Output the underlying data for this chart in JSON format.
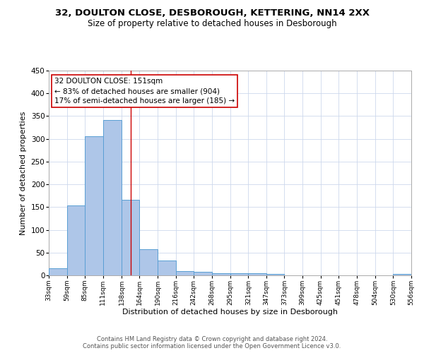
{
  "title1": "32, DOULTON CLOSE, DESBOROUGH, KETTERING, NN14 2XX",
  "title2": "Size of property relative to detached houses in Desborough",
  "xlabel": "Distribution of detached houses by size in Desborough",
  "ylabel": "Number of detached properties",
  "bar_edges": [
    33,
    59,
    85,
    111,
    138,
    164,
    190,
    216,
    242,
    268,
    295,
    321,
    347,
    373,
    399,
    425,
    451,
    478,
    504,
    530,
    556
  ],
  "bar_heights": [
    15,
    153,
    305,
    341,
    166,
    57,
    33,
    9,
    7,
    5,
    4,
    4,
    3,
    0,
    0,
    0,
    0,
    0,
    0,
    3
  ],
  "bar_color": "#aec6e8",
  "bar_edge_color": "#5a9fd4",
  "property_size": 151,
  "vline_color": "#cc0000",
  "annotation_line1": "32 DOULTON CLOSE: 151sqm",
  "annotation_line2": "← 83% of detached houses are smaller (904)",
  "annotation_line3": "17% of semi-detached houses are larger (185) →",
  "annotation_box_color": "#ffffff",
  "annotation_box_edge": "#cc0000",
  "grid_color": "#cdd8ec",
  "footer1": "Contains HM Land Registry data © Crown copyright and database right 2024.",
  "footer2": "Contains public sector information licensed under the Open Government Licence v3.0.",
  "tick_labels": [
    "33sqm",
    "59sqm",
    "85sqm",
    "111sqm",
    "138sqm",
    "164sqm",
    "190sqm",
    "216sqm",
    "242sqm",
    "268sqm",
    "295sqm",
    "321sqm",
    "347sqm",
    "373sqm",
    "399sqm",
    "425sqm",
    "451sqm",
    "478sqm",
    "504sqm",
    "530sqm",
    "556sqm"
  ],
  "ylim": [
    0,
    450
  ],
  "yticks": [
    0,
    50,
    100,
    150,
    200,
    250,
    300,
    350,
    400,
    450
  ],
  "title1_fontsize": 9.5,
  "title2_fontsize": 8.5,
  "xlabel_fontsize": 8.0,
  "ylabel_fontsize": 8.0,
  "tick_fontsize": 6.5,
  "ytick_fontsize": 7.5,
  "annotation_fontsize": 7.5,
  "footer_fontsize": 6.0
}
